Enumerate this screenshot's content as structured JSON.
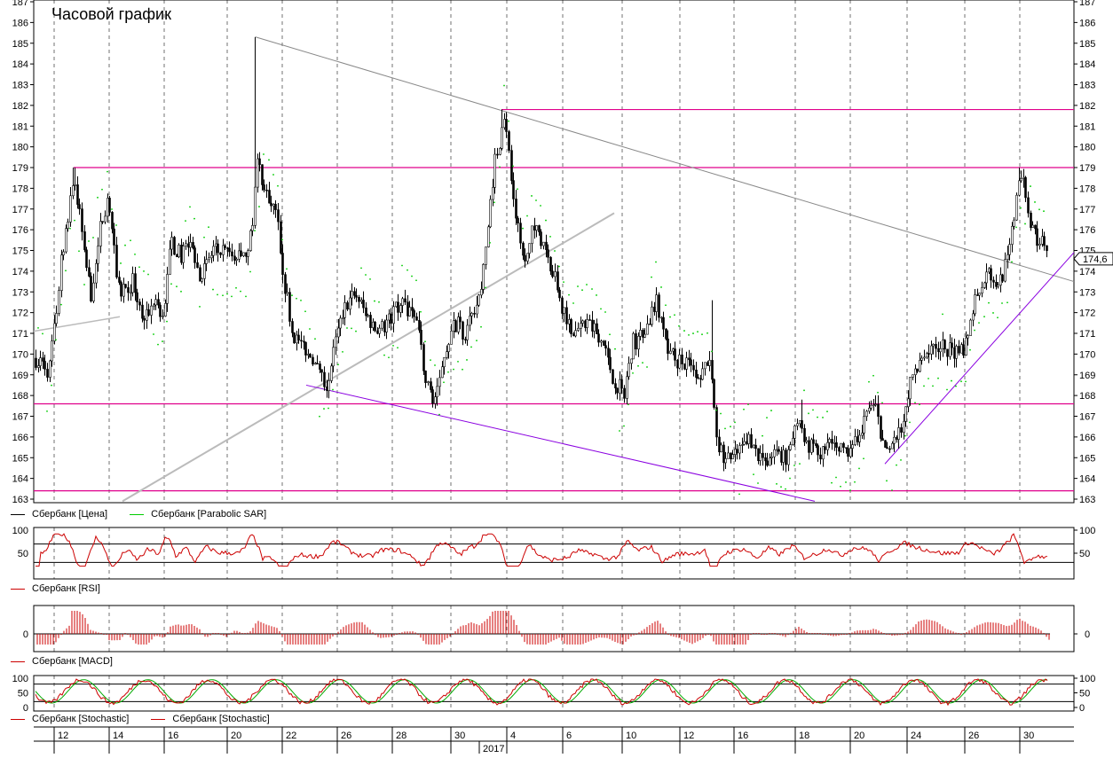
{
  "title": "Часовой график",
  "colors": {
    "price": "#000000",
    "sar": "#00cc00",
    "magenta": "#e0008c",
    "purple": "#8a00e0",
    "trend_gray": "#888888",
    "trend_light": "#bbbbbb",
    "indicator": "#cc0000",
    "stoch_signal": "#00aa00",
    "grid": "#000000"
  },
  "price_panel": {
    "ylim": [
      163,
      187
    ],
    "yticks": [
      "163",
      "164",
      "165",
      "166",
      "167",
      "168",
      "169",
      "170",
      "171",
      "172",
      "173",
      "174",
      "175",
      "176",
      "177",
      "178",
      "179",
      "180",
      "181",
      "182",
      "183",
      "184",
      "185",
      "186",
      "187"
    ],
    "last_price_label": "174,6",
    "legend": [
      {
        "label": "Сбербанк [Цена]",
        "color": "#000000"
      },
      {
        "label": "Сбербанк [Parabolic SAR]",
        "color": "#00cc00"
      }
    ]
  },
  "rsi_panel": {
    "ylim": [
      0,
      100
    ],
    "yticks": [
      "100",
      "50"
    ],
    "legend": [
      {
        "label": "Сбербанк [RSI]",
        "color": "#cc0000"
      }
    ]
  },
  "macd_panel": {
    "yticks": [
      "0"
    ],
    "legend": [
      {
        "label": "Сбербанк [MACD]",
        "color": "#cc0000"
      }
    ]
  },
  "stoch_panel": {
    "ylim": [
      0,
      100
    ],
    "yticks": [
      "100",
      "50",
      "0"
    ],
    "legend": [
      {
        "label": "Сбербанк [Stochastic]",
        "color": "#cc0000"
      },
      {
        "label": "Сбербанк [Stochastic]",
        "color": "#cc0000"
      }
    ]
  },
  "x_axis": {
    "day_labels": [
      "12",
      "14",
      "16",
      "20",
      "22",
      "26",
      "28",
      "30",
      "4",
      "6",
      "10",
      "12",
      "16",
      "18",
      "20",
      "24",
      "26",
      "30"
    ],
    "year_label": "2017"
  },
  "chart_data": {
    "type": "line",
    "title": "Часовой график",
    "x_ticks": [
      "12",
      "14",
      "16",
      "20",
      "22",
      "26",
      "28",
      "30",
      "4",
      "6",
      "10",
      "12",
      "16",
      "18",
      "20",
      "24",
      "26",
      "30"
    ],
    "series": [
      {
        "name": "Сбербанк [Цена]",
        "type": "candlestick-close",
        "x": [
          "12",
          "14",
          "16",
          "20",
          "22",
          "26",
          "28",
          "30",
          "4",
          "6",
          "10",
          "12",
          "16",
          "18",
          "20",
          "24",
          "26",
          "30"
        ],
        "values": [
          169.5,
          173.0,
          172.5,
          175.0,
          171.5,
          169.0,
          172.0,
          168.0,
          179.5,
          174.0,
          170.0,
          165.0,
          165.5,
          166.5,
          168.5,
          170.0,
          173.5,
          175.5
        ]
      }
    ],
    "horizontal_levels": [
      181.8,
      179.0,
      167.6,
      163.4
    ],
    "ylim": [
      163,
      187
    ],
    "last_value": 174.6
  }
}
